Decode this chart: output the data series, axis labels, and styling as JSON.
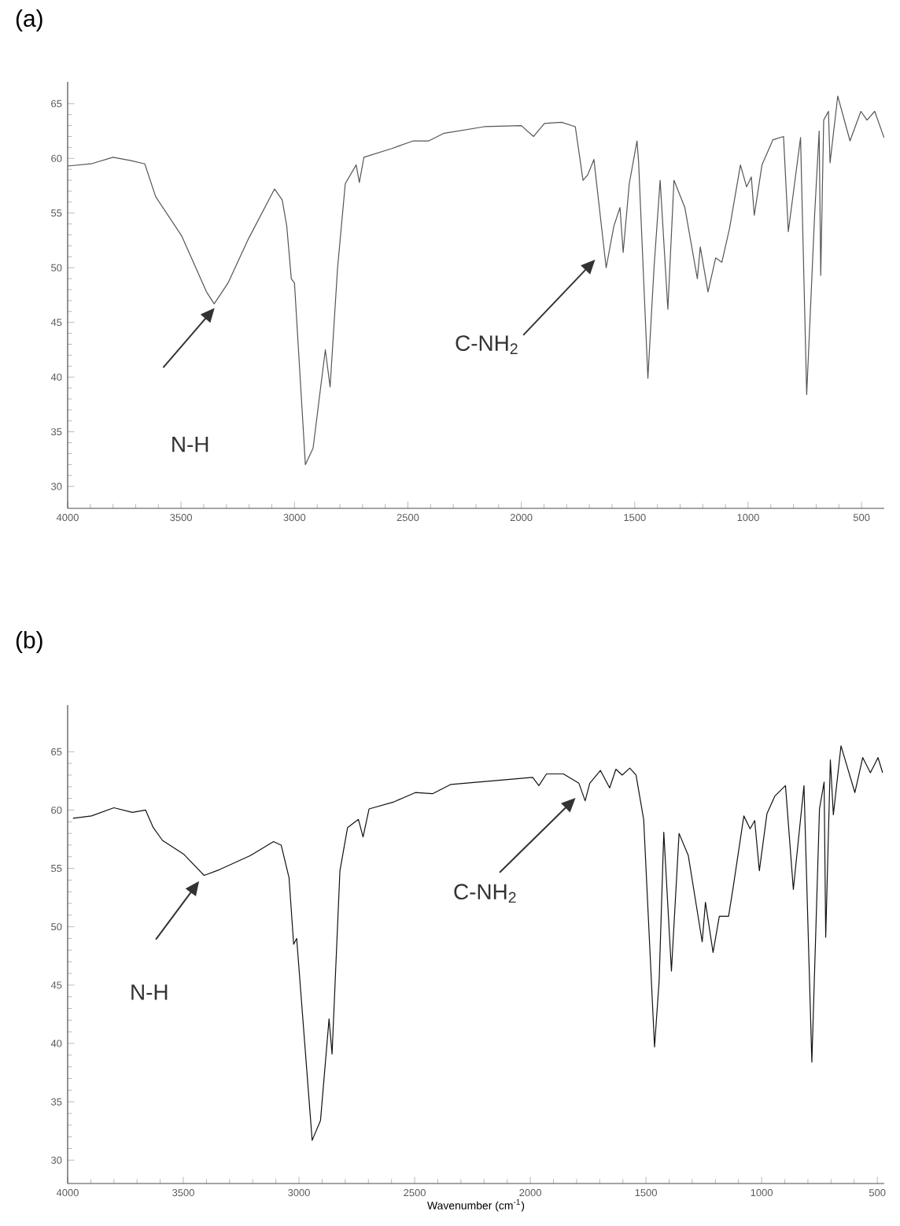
{
  "chart_data": [
    {
      "type": "line",
      "title": "(a)",
      "color": "#555555",
      "x": [
        4000,
        3897,
        3800,
        3720,
        3660,
        3612,
        3497,
        3388,
        3354,
        3293,
        3204,
        3088,
        3054,
        3034,
        3014,
        3000,
        2952,
        2918,
        2864,
        2843,
        2810,
        2776,
        2728,
        2714,
        2694,
        2571,
        2476,
        2408,
        2340,
        2163,
        2000,
        1946,
        1898,
        1823,
        1762,
        1728,
        1707,
        1680,
        1626,
        1592,
        1565,
        1551,
        1524,
        1490,
        1483,
        1442,
        1415,
        1388,
        1354,
        1327,
        1279,
        1224,
        1211,
        1177,
        1143,
        1116,
        1082,
        1034,
        1007,
        986,
        973,
        939,
        891,
        844,
        823,
        769,
        742,
        707,
        687,
        680,
        667,
        646,
        639,
        605,
        551,
        503,
        476,
        442,
        401
      ],
      "values": [
        59.3,
        59.5,
        60.1,
        59.8,
        59.5,
        56.5,
        52.9,
        47.8,
        46.7,
        48.6,
        52.6,
        57.2,
        56.2,
        53.8,
        49.0,
        48.6,
        32.0,
        33.5,
        42.5,
        39.1,
        50.0,
        57.7,
        59.4,
        57.8,
        60.1,
        60.9,
        61.6,
        61.6,
        62.3,
        62.9,
        63.0,
        62.0,
        63.2,
        63.3,
        62.9,
        58.0,
        58.5,
        59.9,
        50.0,
        53.8,
        55.5,
        51.4,
        57.7,
        61.6,
        59.7,
        39.9,
        50.0,
        58.0,
        46.2,
        58.0,
        55.5,
        49.0,
        51.9,
        47.8,
        50.9,
        50.5,
        53.6,
        59.4,
        57.4,
        58.3,
        54.8,
        59.4,
        61.7,
        62.0,
        53.3,
        61.9,
        38.4,
        54.8,
        62.5,
        49.3,
        63.5,
        64.3,
        59.6,
        65.7,
        61.6,
        64.3,
        63.5,
        64.3,
        61.9
      ],
      "xlim": [
        4000,
        400
      ],
      "ylim": [
        28,
        67
      ],
      "xticks": [
        4000,
        3500,
        3000,
        2500,
        2000,
        1500,
        1000,
        500
      ],
      "yticks": [
        30,
        35,
        40,
        45,
        50,
        55,
        60,
        65
      ],
      "annotations": [
        "N-H",
        "C-NH$_{2}$"
      ]
    },
    {
      "type": "line",
      "title": "(b)",
      "color": "#111111",
      "xlabel": "Wavenumber (cm$^{-1}$)",
      "x": [
        3977,
        3897,
        3800,
        3720,
        3663,
        3630,
        3590,
        3497,
        3410,
        3343,
        3210,
        3110,
        3077,
        3043,
        3023,
        3010,
        2943,
        2907,
        2870,
        2857,
        2823,
        2790,
        2743,
        2723,
        2697,
        2590,
        2497,
        2423,
        2343,
        1990,
        1963,
        1930,
        1857,
        1790,
        1763,
        1743,
        1697,
        1657,
        1630,
        1603,
        1570,
        1543,
        1510,
        1463,
        1443,
        1423,
        1390,
        1357,
        1317,
        1257,
        1243,
        1210,
        1183,
        1143,
        1123,
        1077,
        1050,
        1030,
        1010,
        977,
        943,
        897,
        863,
        817,
        783,
        750,
        730,
        723,
        703,
        690,
        657,
        597,
        563,
        530,
        497,
        477
      ],
      "values": [
        59.3,
        59.5,
        60.2,
        59.8,
        60.0,
        58.5,
        57.4,
        56.2,
        54.4,
        54.9,
        56.1,
        57.3,
        57.0,
        54.2,
        48.5,
        49.0,
        31.7,
        33.4,
        42.1,
        39.1,
        54.8,
        58.5,
        59.2,
        57.7,
        60.1,
        60.7,
        61.5,
        61.4,
        62.2,
        62.8,
        62.1,
        63.1,
        63.1,
        62.3,
        60.8,
        62.3,
        63.4,
        61.9,
        63.5,
        63.0,
        63.6,
        63.0,
        59.2,
        39.7,
        45.4,
        58.1,
        46.2,
        58.0,
        56.1,
        48.7,
        52.1,
        47.8,
        50.9,
        50.9,
        53.4,
        59.5,
        58.4,
        59.1,
        54.8,
        59.7,
        61.2,
        62.1,
        53.2,
        62.1,
        38.4,
        60.1,
        62.4,
        49.1,
        64.3,
        59.6,
        65.5,
        61.5,
        64.5,
        63.2,
        64.5,
        63.2
      ],
      "xlim": [
        4000,
        470
      ],
      "ylim": [
        28,
        69
      ],
      "xticks": [
        4000,
        3500,
        3000,
        2500,
        2000,
        1500,
        1000,
        500
      ],
      "yticks": [
        30,
        35,
        40,
        45,
        50,
        55,
        60,
        65
      ],
      "annotations": [
        "N-H",
        "C-NH$_{2}$"
      ]
    }
  ]
}
